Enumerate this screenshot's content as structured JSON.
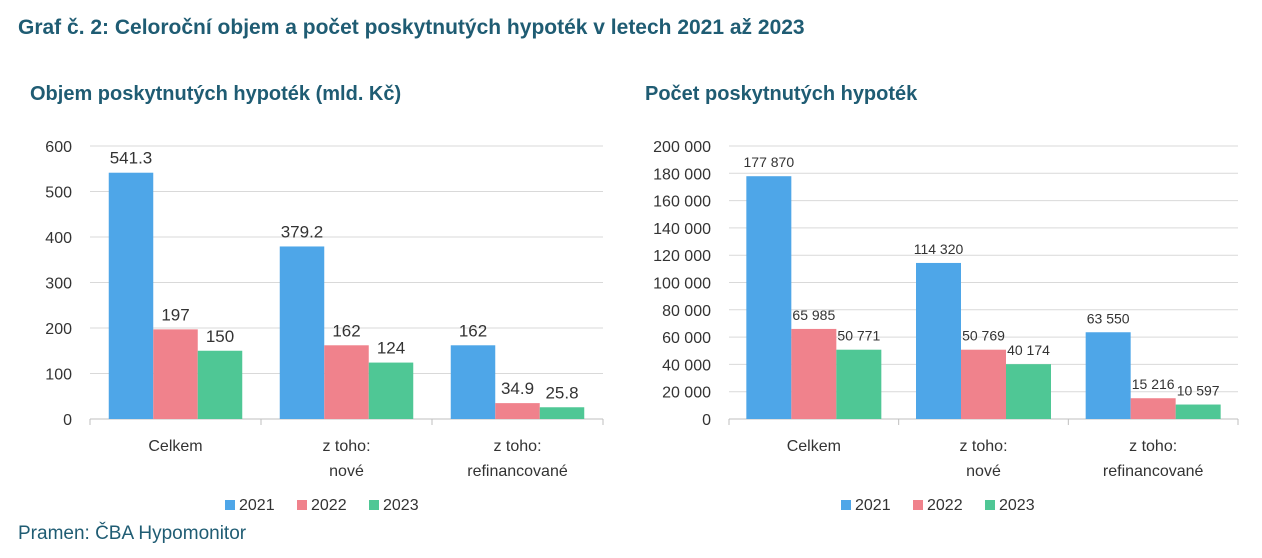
{
  "header": {
    "title": "Graf č. 2: Celoroční objem a počet poskytnutých hypoték v letech 2021 až 2023"
  },
  "footer": {
    "source": "Pramen: ČBA Hypomonitor"
  },
  "colors": {
    "2021": "#4ea6e8",
    "2022": "#f0828c",
    "2023": "#4fc795",
    "title": "#1f5c73",
    "grid": "#d9d9d9",
    "axis": "#bfbfbf"
  },
  "chart_data": [
    {
      "type": "bar",
      "title": "Objem poskytnutých hypoték (mld. Kč)",
      "categories": [
        [
          "Celkem"
        ],
        [
          "z toho:",
          "nové"
        ],
        [
          "z toho:",
          "refinancované"
        ]
      ],
      "series": [
        {
          "name": "2021",
          "values": [
            541.3,
            379.2,
            162
          ],
          "labels": [
            "541.3",
            "379.2",
            "162"
          ]
        },
        {
          "name": "2022",
          "values": [
            197,
            162,
            34.9
          ],
          "labels": [
            "197",
            "162",
            "34.9"
          ]
        },
        {
          "name": "2023",
          "values": [
            150,
            124,
            25.8
          ],
          "labels": [
            "150",
            "124",
            "25.8"
          ]
        }
      ],
      "ylim": [
        0,
        600
      ],
      "yticks": [
        0,
        100,
        200,
        300,
        400,
        500,
        600
      ],
      "ytick_labels": [
        "0",
        "100",
        "200",
        "300",
        "400",
        "500",
        "600"
      ],
      "grid": true,
      "legend": "bottom"
    },
    {
      "type": "bar",
      "title": "Počet poskytnutých hypoték",
      "categories": [
        [
          "Celkem"
        ],
        [
          "z toho:",
          "nové"
        ],
        [
          "z toho:",
          "refinancované"
        ]
      ],
      "series": [
        {
          "name": "2021",
          "values": [
            177870,
            114320,
            63550
          ],
          "labels": [
            "177 870",
            "114 320",
            "63 550"
          ]
        },
        {
          "name": "2022",
          "values": [
            65985,
            50769,
            15216
          ],
          "labels": [
            "65 985",
            "50 769",
            "15 216"
          ]
        },
        {
          "name": "2023",
          "values": [
            50771,
            40174,
            10597
          ],
          "labels": [
            "50 771",
            "40 174",
            "10 597"
          ]
        }
      ],
      "ylim": [
        0,
        200000
      ],
      "yticks": [
        0,
        20000,
        40000,
        60000,
        80000,
        100000,
        120000,
        140000,
        160000,
        180000,
        200000
      ],
      "ytick_labels": [
        "0",
        "20 000",
        "40 000",
        "60 000",
        "80 000",
        "100 000",
        "120 000",
        "140 000",
        "160 000",
        "180 000",
        "200 000"
      ],
      "grid": true,
      "legend": "bottom"
    }
  ]
}
